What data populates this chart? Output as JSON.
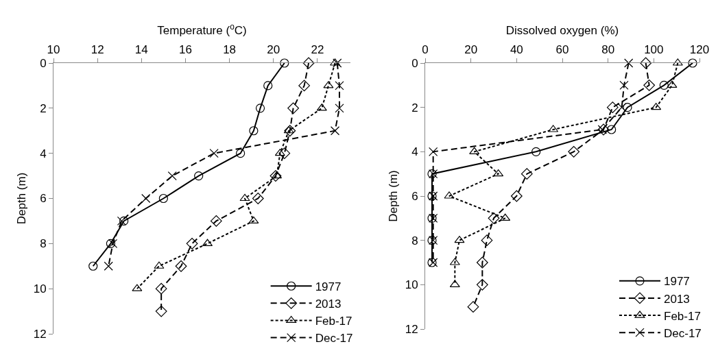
{
  "chart_data": [
    {
      "type": "line",
      "xlabel": "Temperature ($^{o}$C)",
      "ylabel": "Depth (m)",
      "xlim": [
        10,
        23.5
      ],
      "xticks": [
        10,
        12,
        14,
        16,
        18,
        20,
        22
      ],
      "ylim": [
        12,
        0
      ],
      "yticks": [
        0,
        2,
        4,
        6,
        8,
        10,
        12
      ],
      "grid": false,
      "legend": "bottom right",
      "series": [
        {
          "name": "1977",
          "color": "#000000",
          "marker": "circle",
          "line_style": "solid",
          "x": [
            20.5,
            19.75,
            19.4,
            19.1,
            18.5,
            16.6,
            15.0,
            13.2,
            12.6,
            11.8
          ],
          "values": [
            0,
            1,
            2,
            3,
            4,
            5,
            6,
            7,
            8,
            9
          ]
        },
        {
          "name": "2013",
          "color": "#000000",
          "marker": "diamond",
          "line_style": "dashed",
          "x": [
            21.6,
            21.4,
            20.9,
            20.75,
            20.5,
            20.1,
            19.3,
            17.4,
            16.3,
            15.8,
            14.9,
            14.9
          ],
          "values": [
            0,
            1,
            2,
            3,
            4,
            5,
            6,
            7,
            8,
            9,
            10,
            11
          ]
        },
        {
          "name": "Feb-17",
          "color": "#000000",
          "marker": "triangle",
          "line_style": "dotted",
          "x": [
            22.8,
            22.5,
            22.2,
            20.7,
            20.3,
            20.15,
            18.7,
            19.1,
            17.0,
            14.8,
            13.8
          ],
          "values": [
            0,
            1,
            2,
            3,
            4,
            5,
            6,
            7,
            8,
            9,
            10
          ]
        },
        {
          "name": "Dec-17",
          "color": "#000000",
          "marker": "cross",
          "line_style": "dashed",
          "x": [
            22.9,
            23.0,
            23.0,
            22.8,
            17.3,
            15.4,
            14.2,
            13.1,
            12.7,
            12.5
          ],
          "values": [
            0,
            1,
            2,
            3,
            4,
            5,
            6,
            7,
            8,
            9
          ]
        }
      ]
    },
    {
      "type": "line",
      "xlabel": "Dissolved oxygen (%)",
      "ylabel": "Depth (m)",
      "xlim": [
        0,
        120
      ],
      "xticks": [
        0,
        20,
        40,
        60,
        80,
        100,
        120
      ],
      "ylim": [
        12,
        0
      ],
      "yticks": [
        0,
        2,
        4,
        6,
        8,
        10,
        12
      ],
      "grid": false,
      "legend": "bottom right",
      "series": [
        {
          "name": "1977",
          "color": "#000000",
          "marker": "circle",
          "line_style": "solid",
          "x": [
            117,
            104.5,
            88.5,
            81.5,
            48.5,
            3,
            3,
            3,
            3,
            3
          ],
          "values": [
            0,
            1,
            2,
            3,
            4,
            5,
            6,
            7,
            8,
            9
          ]
        },
        {
          "name": "2013",
          "color": "#000000",
          "marker": "diamond",
          "line_style": "dashed",
          "x": [
            96.5,
            98,
            82,
            78,
            65,
            44.5,
            40,
            30,
            27,
            25,
            25,
            21
          ],
          "values": [
            0,
            1,
            2,
            3,
            4,
            5,
            6,
            7,
            8,
            9,
            10,
            11
          ]
        },
        {
          "name": "Feb-17",
          "color": "#000000",
          "marker": "triangle",
          "line_style": "dotted",
          "x": [
            110.5,
            108,
            101,
            56,
            21.5,
            32,
            10.5,
            35,
            15,
            13,
            13
          ],
          "values": [
            0,
            1,
            2,
            3,
            4,
            5,
            6,
            7,
            8,
            9,
            10
          ]
        },
        {
          "name": "Dec-17",
          "color": "#000000",
          "marker": "cross",
          "line_style": "dashed",
          "x": [
            89,
            87,
            86,
            77.5,
            3.5,
            3.5,
            3.5,
            3.5,
            3.5,
            3.5
          ],
          "values": [
            0,
            1,
            2,
            3,
            4,
            5,
            6,
            7,
            8,
            9
          ]
        }
      ]
    }
  ]
}
